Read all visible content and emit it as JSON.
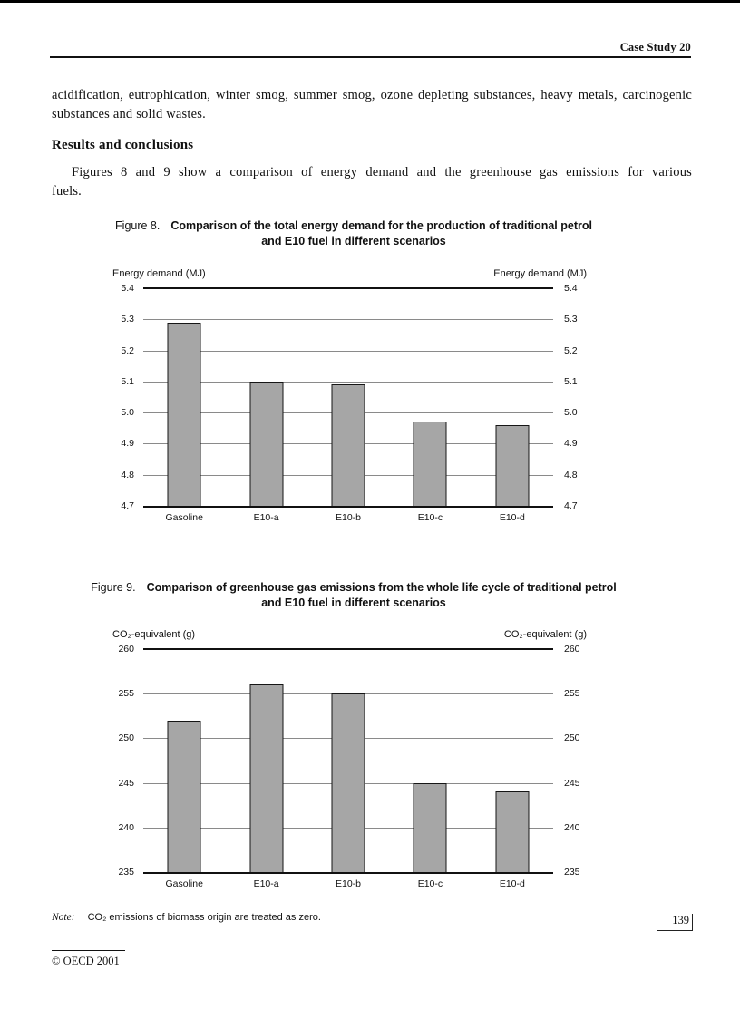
{
  "header": {
    "label": "Case Study 20"
  },
  "body": {
    "intro": "acidification, eutrophication, winter smog, summer smog, ozone depleting substances, heavy metals, carcinogenic substances and solid wastes.",
    "results_heading": "Results and conclusions",
    "results_paragraph": "Figures 8 and 9 show a comparison of energy demand and the greenhouse gas emissions for various fuels."
  },
  "figure8_caption": {
    "label": "Figure 8.",
    "line1": "Comparison of the total energy demand for the production of traditional petrol",
    "line2": "and E10 fuel in different scenarios"
  },
  "figure9_caption": {
    "label": "Figure 9.",
    "line1": "Comparison of greenhouse gas emissions from the whole life cycle of traditional petrol",
    "line2": "and E10 fuel in different scenarios"
  },
  "note": {
    "label": "Note:",
    "text": "CO₂ emissions of biomass origin are treated as zero."
  },
  "footer": {
    "page_number": "139",
    "copyright": "© OECD 2001"
  },
  "chart_data": [
    {
      "type": "bar",
      "figure": "Figure 8",
      "title": "Comparison of the total energy demand for the production of traditional petrol and E10 fuel in different scenarios",
      "categories": [
        "Gasoline",
        "E10-a",
        "E10-b",
        "E10-c",
        "E10-d"
      ],
      "values": [
        5.29,
        5.1,
        5.09,
        4.97,
        4.96
      ],
      "ylabel_left": "Energy demand (MJ)",
      "ylabel_right": "Energy demand (MJ)",
      "ylim": [
        4.7,
        5.4
      ],
      "yticks": [
        "5.4",
        "5.3",
        "5.2",
        "5.1",
        "5.0",
        "4.9",
        "4.8",
        "4.7"
      ],
      "grid": true,
      "legend": "none",
      "bar_color": "#a6a6a6"
    },
    {
      "type": "bar",
      "figure": "Figure 9",
      "title": "Comparison of greenhouse gas emissions from the whole life cycle of traditional petrol and E10 fuel in different scenarios",
      "categories": [
        "Gasoline",
        "E10-a",
        "E10-b",
        "E10-c",
        "E10-d"
      ],
      "values": [
        252,
        256,
        255,
        245,
        244
      ],
      "ylabel_left": "CO₂-equivalent (g)",
      "ylabel_right": "CO₂-equivalent (g)",
      "ylim": [
        235,
        260
      ],
      "yticks": [
        "260",
        "255",
        "250",
        "245",
        "240",
        "235"
      ],
      "grid": true,
      "legend": "none",
      "bar_color": "#a6a6a6"
    }
  ]
}
